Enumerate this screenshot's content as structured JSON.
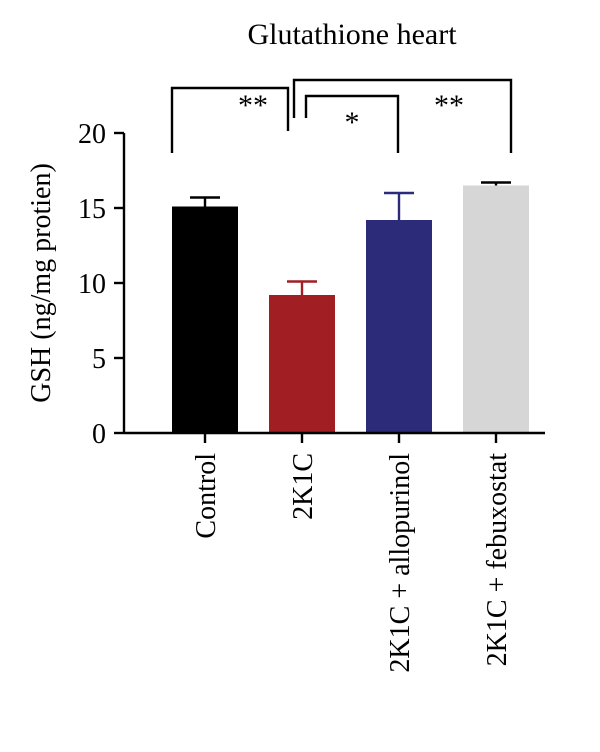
{
  "chart_data": {
    "type": "bar",
    "title": "Glutathione heart",
    "xlabel": "",
    "ylabel": "GSH (ng/mg protien)",
    "ylim": [
      0,
      20
    ],
    "yticks": [
      0,
      5,
      10,
      15,
      20
    ],
    "grid": false,
    "legend": "none",
    "categories": [
      "Control",
      "2K1C",
      "2K1C + allopurinol",
      "2K1C + febuxostat"
    ],
    "values": [
      15.1,
      9.2,
      14.2,
      16.5
    ],
    "errors": [
      0.6,
      0.9,
      1.8,
      0.2
    ],
    "colors": [
      "#000000",
      "#a11e23",
      "#2b2b7a",
      "#d6d6d6"
    ],
    "significance": [
      {
        "from": "Control",
        "to": "2K1C",
        "label": "**"
      },
      {
        "from": "2K1C",
        "to": "2K1C + allopurinol",
        "label": "*"
      },
      {
        "from": "2K1C",
        "to": "2K1C + febuxostat",
        "label": "**"
      }
    ]
  }
}
